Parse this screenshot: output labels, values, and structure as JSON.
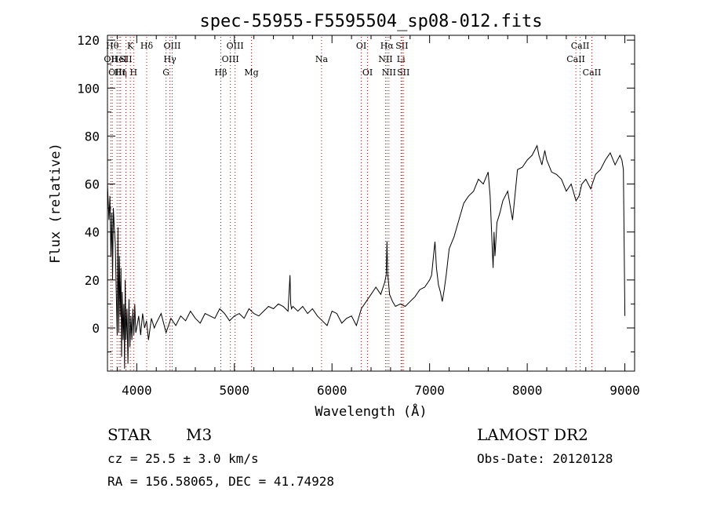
{
  "chart_data": {
    "type": "line",
    "title": "spec-55955-F5595504_sp08-012.fits",
    "xlabel": "Wavelength (Å)",
    "ylabel": "Flux (relative)",
    "xlim": [
      3700,
      9100
    ],
    "ylim": [
      -18,
      122
    ],
    "xticks": [
      4000,
      5000,
      6000,
      7000,
      8000,
      9000
    ],
    "yticks": [
      0,
      20,
      40,
      60,
      80,
      100,
      120
    ],
    "grid": false,
    "line_color": "#000000",
    "marker_line_color": "#cc0000",
    "series": [
      {
        "x": [
          3700,
          3715,
          3725,
          3735,
          3745,
          3752,
          3760,
          3770,
          3780,
          3790,
          3800,
          3808,
          3815,
          3822,
          3830,
          3838,
          3845,
          3852,
          3860,
          3868,
          3875,
          3882,
          3890,
          3900,
          3910,
          3920,
          3930,
          3940,
          3950,
          3960,
          3970,
          3980,
          3990,
          4000,
          4020,
          4040,
          4060,
          4080,
          4100,
          4120,
          4150,
          4180,
          4200,
          4250,
          4300,
          4350,
          4400,
          4450,
          4500,
          4550,
          4600,
          4650,
          4700,
          4750,
          4800,
          4850,
          4900,
          4950,
          5000,
          5050,
          5100,
          5150,
          5200,
          5250,
          5300,
          5350,
          5400,
          5450,
          5500,
          5550,
          5570,
          5577,
          5585,
          5600,
          5650,
          5700,
          5750,
          5800,
          5850,
          5900,
          5950,
          6000,
          6050,
          6100,
          6150,
          6200,
          6250,
          6300,
          6350,
          6400,
          6450,
          6500,
          6540,
          6555,
          6563,
          6570,
          6590,
          6620,
          6650,
          6700,
          6750,
          6800,
          6850,
          6900,
          6950,
          7000,
          7020,
          7040,
          7055,
          7070,
          7090,
          7110,
          7130,
          7150,
          7170,
          7200,
          7250,
          7300,
          7350,
          7400,
          7450,
          7500,
          7550,
          7600,
          7620,
          7640,
          7650,
          7660,
          7670,
          7690,
          7720,
          7750,
          7800,
          7850,
          7900,
          7950,
          8000,
          8050,
          8100,
          8120,
          8150,
          8180,
          8200,
          8220,
          8250,
          8300,
          8350,
          8400,
          8450,
          8500,
          8530,
          8560,
          8600,
          8650,
          8700,
          8750,
          8800,
          8850,
          8900,
          8950,
          8970,
          8985,
          9000
        ],
        "y": [
          60,
          45,
          55,
          30,
          48,
          20,
          50,
          42,
          35,
          15,
          -3,
          42,
          -2,
          30,
          5,
          25,
          -12,
          15,
          -5,
          10,
          -17,
          20,
          -5,
          8,
          -15,
          12,
          -8,
          5,
          -5,
          8,
          -3,
          10,
          -2,
          0,
          5,
          -3,
          6,
          0,
          3,
          -5,
          4,
          0,
          2,
          6,
          -2,
          4,
          1,
          5,
          3,
          7,
          4,
          2,
          6,
          5,
          4,
          8,
          6,
          3,
          5,
          6,
          4,
          8,
          6,
          5,
          7,
          9,
          8,
          10,
          9,
          7,
          22,
          10,
          8,
          9,
          7,
          9,
          6,
          8,
          5,
          3,
          1,
          7,
          6,
          2,
          4,
          5,
          1,
          8,
          11,
          14,
          17,
          14,
          19,
          22,
          36,
          23,
          14,
          11,
          9,
          10,
          9,
          11,
          13,
          16,
          17,
          20,
          22,
          30,
          36,
          25,
          18,
          15,
          11,
          16,
          22,
          33,
          38,
          45,
          52,
          55,
          57,
          62,
          60,
          65,
          55,
          35,
          25,
          40,
          30,
          44,
          48,
          53,
          57,
          45,
          66,
          67,
          70,
          72,
          76,
          72,
          68,
          74,
          70,
          68,
          65,
          64,
          62,
          57,
          60,
          53,
          55,
          60,
          62,
          58,
          64,
          66,
          70,
          73,
          68,
          72,
          70,
          66,
          5
        ]
      }
    ],
    "line_markers": [
      {
        "x": 3750,
        "label": "Hθ",
        "row": 0
      },
      {
        "x": 3734,
        "label": "OII",
        "row": 1
      },
      {
        "x": 3798,
        "label": "OIII",
        "row": 2
      },
      {
        "x": 3820,
        "label": "HeI",
        "row": 1
      },
      {
        "x": 3835,
        "label": "Hη",
        "row": 2
      },
      {
        "x": 3889,
        "label": "SII",
        "row": 1
      },
      {
        "x": 3934,
        "label": "K",
        "row": 0
      },
      {
        "x": 3968,
        "label": "H",
        "row": 2
      },
      {
        "x": 4102,
        "label": "Hδ",
        "row": 0
      },
      {
        "x": 4300,
        "label": "G",
        "row": 2
      },
      {
        "x": 4340,
        "label": "Hγ",
        "row": 1
      },
      {
        "x": 4363,
        "label": "OIII",
        "row": 0
      },
      {
        "x": 4861,
        "label": "Hβ",
        "row": 2
      },
      {
        "x": 4959,
        "label": "OIII",
        "row": 1
      },
      {
        "x": 5007,
        "label": "OIII",
        "row": 0
      },
      {
        "x": 5175,
        "label": "Mg",
        "row": 2
      },
      {
        "x": 5893,
        "label": "Na",
        "row": 1
      },
      {
        "x": 6300,
        "label": "OI",
        "row": 0
      },
      {
        "x": 6364,
        "label": "OI",
        "row": 2
      },
      {
        "x": 6548,
        "label": "NII",
        "row": 1
      },
      {
        "x": 6563,
        "label": "Hα",
        "row": 0
      },
      {
        "x": 6583,
        "label": "NII",
        "row": 2
      },
      {
        "x": 6707,
        "label": "Li",
        "row": 1
      },
      {
        "x": 6716,
        "label": "SII",
        "row": 0
      },
      {
        "x": 6731,
        "label": "SII",
        "row": 2
      },
      {
        "x": 8498,
        "label": "CaII",
        "row": 1
      },
      {
        "x": 8542,
        "label": "CaII",
        "row": 0
      },
      {
        "x": 8662,
        "label": "CaII",
        "row": 2
      }
    ]
  },
  "info": {
    "object_type": "STAR",
    "subclass": "M3",
    "survey": "LAMOST DR2",
    "cz": "cz = 25.5 ± 3.0 km/s",
    "obs_date": "Obs-Date: 20120128",
    "coords": "RA = 156.58065, DEC =  41.74928"
  }
}
